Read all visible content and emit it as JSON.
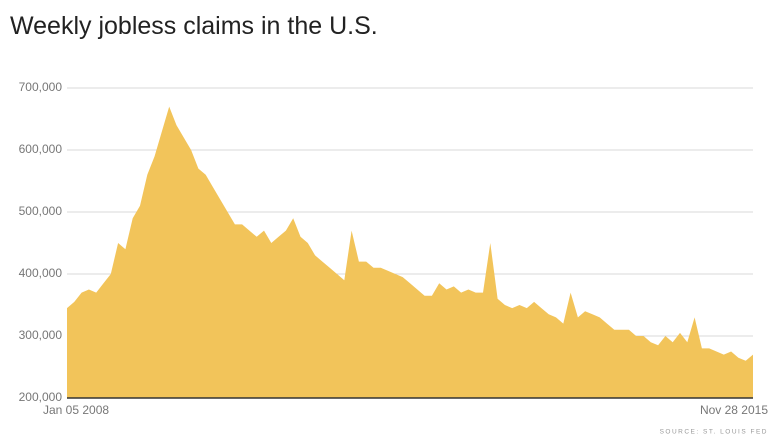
{
  "chart_data": {
    "type": "area",
    "title": "Weekly jobless claims in the U.S.",
    "source": "SOURCE: ST. LOUIS FED",
    "color": "#f2c45a",
    "categories": [
      "Jan 05 2008",
      null,
      null,
      null,
      null,
      null,
      null,
      null,
      null,
      null,
      null,
      null,
      null,
      null,
      null,
      null,
      null,
      null,
      null,
      null,
      null,
      null,
      null,
      null,
      null,
      null,
      null,
      null,
      null,
      null,
      null,
      null,
      null,
      null,
      null,
      null,
      null,
      null,
      null,
      null,
      null,
      null,
      null,
      null,
      null,
      null,
      null,
      null,
      null,
      null,
      null,
      null,
      null,
      null,
      null,
      null,
      null,
      null,
      null,
      null,
      null,
      null,
      null,
      null,
      null,
      null,
      null,
      null,
      null,
      null,
      null,
      null,
      null,
      null,
      null,
      null,
      null,
      null,
      null,
      null,
      null,
      null,
      null,
      null,
      null,
      null,
      null,
      null,
      null,
      null,
      null,
      null,
      null,
      null,
      "Nov 28 2015"
    ],
    "values": [
      345,
      355,
      370,
      375,
      370,
      385,
      400,
      450,
      440,
      490,
      510,
      560,
      590,
      630,
      670,
      640,
      620,
      600,
      570,
      560,
      540,
      520,
      500,
      480,
      480,
      470,
      460,
      470,
      450,
      460,
      470,
      490,
      460,
      450,
      430,
      420,
      410,
      400,
      390,
      470,
      420,
      420,
      410,
      410,
      405,
      400,
      395,
      385,
      375,
      365,
      365,
      385,
      375,
      380,
      370,
      375,
      370,
      370,
      450,
      360,
      350,
      345,
      350,
      345,
      355,
      345,
      335,
      330,
      320,
      370,
      330,
      340,
      335,
      330,
      320,
      310,
      310,
      310,
      300,
      300,
      290,
      285,
      300,
      290,
      305,
      290,
      330,
      280,
      280,
      275,
      270,
      275,
      265,
      260,
      270
    ],
    "ylim": [
      200000,
      700000
    ],
    "yticks": [
      {
        "value": 200000,
        "label": "200,000"
      },
      {
        "value": 300000,
        "label": "300,000"
      },
      {
        "value": 400000,
        "label": "400,000"
      },
      {
        "value": 500000,
        "label": "500,000"
      },
      {
        "value": 600000,
        "label": "600,000"
      },
      {
        "value": 700000,
        "label": "700,000"
      }
    ],
    "value_scale": 1000,
    "grid": true
  }
}
